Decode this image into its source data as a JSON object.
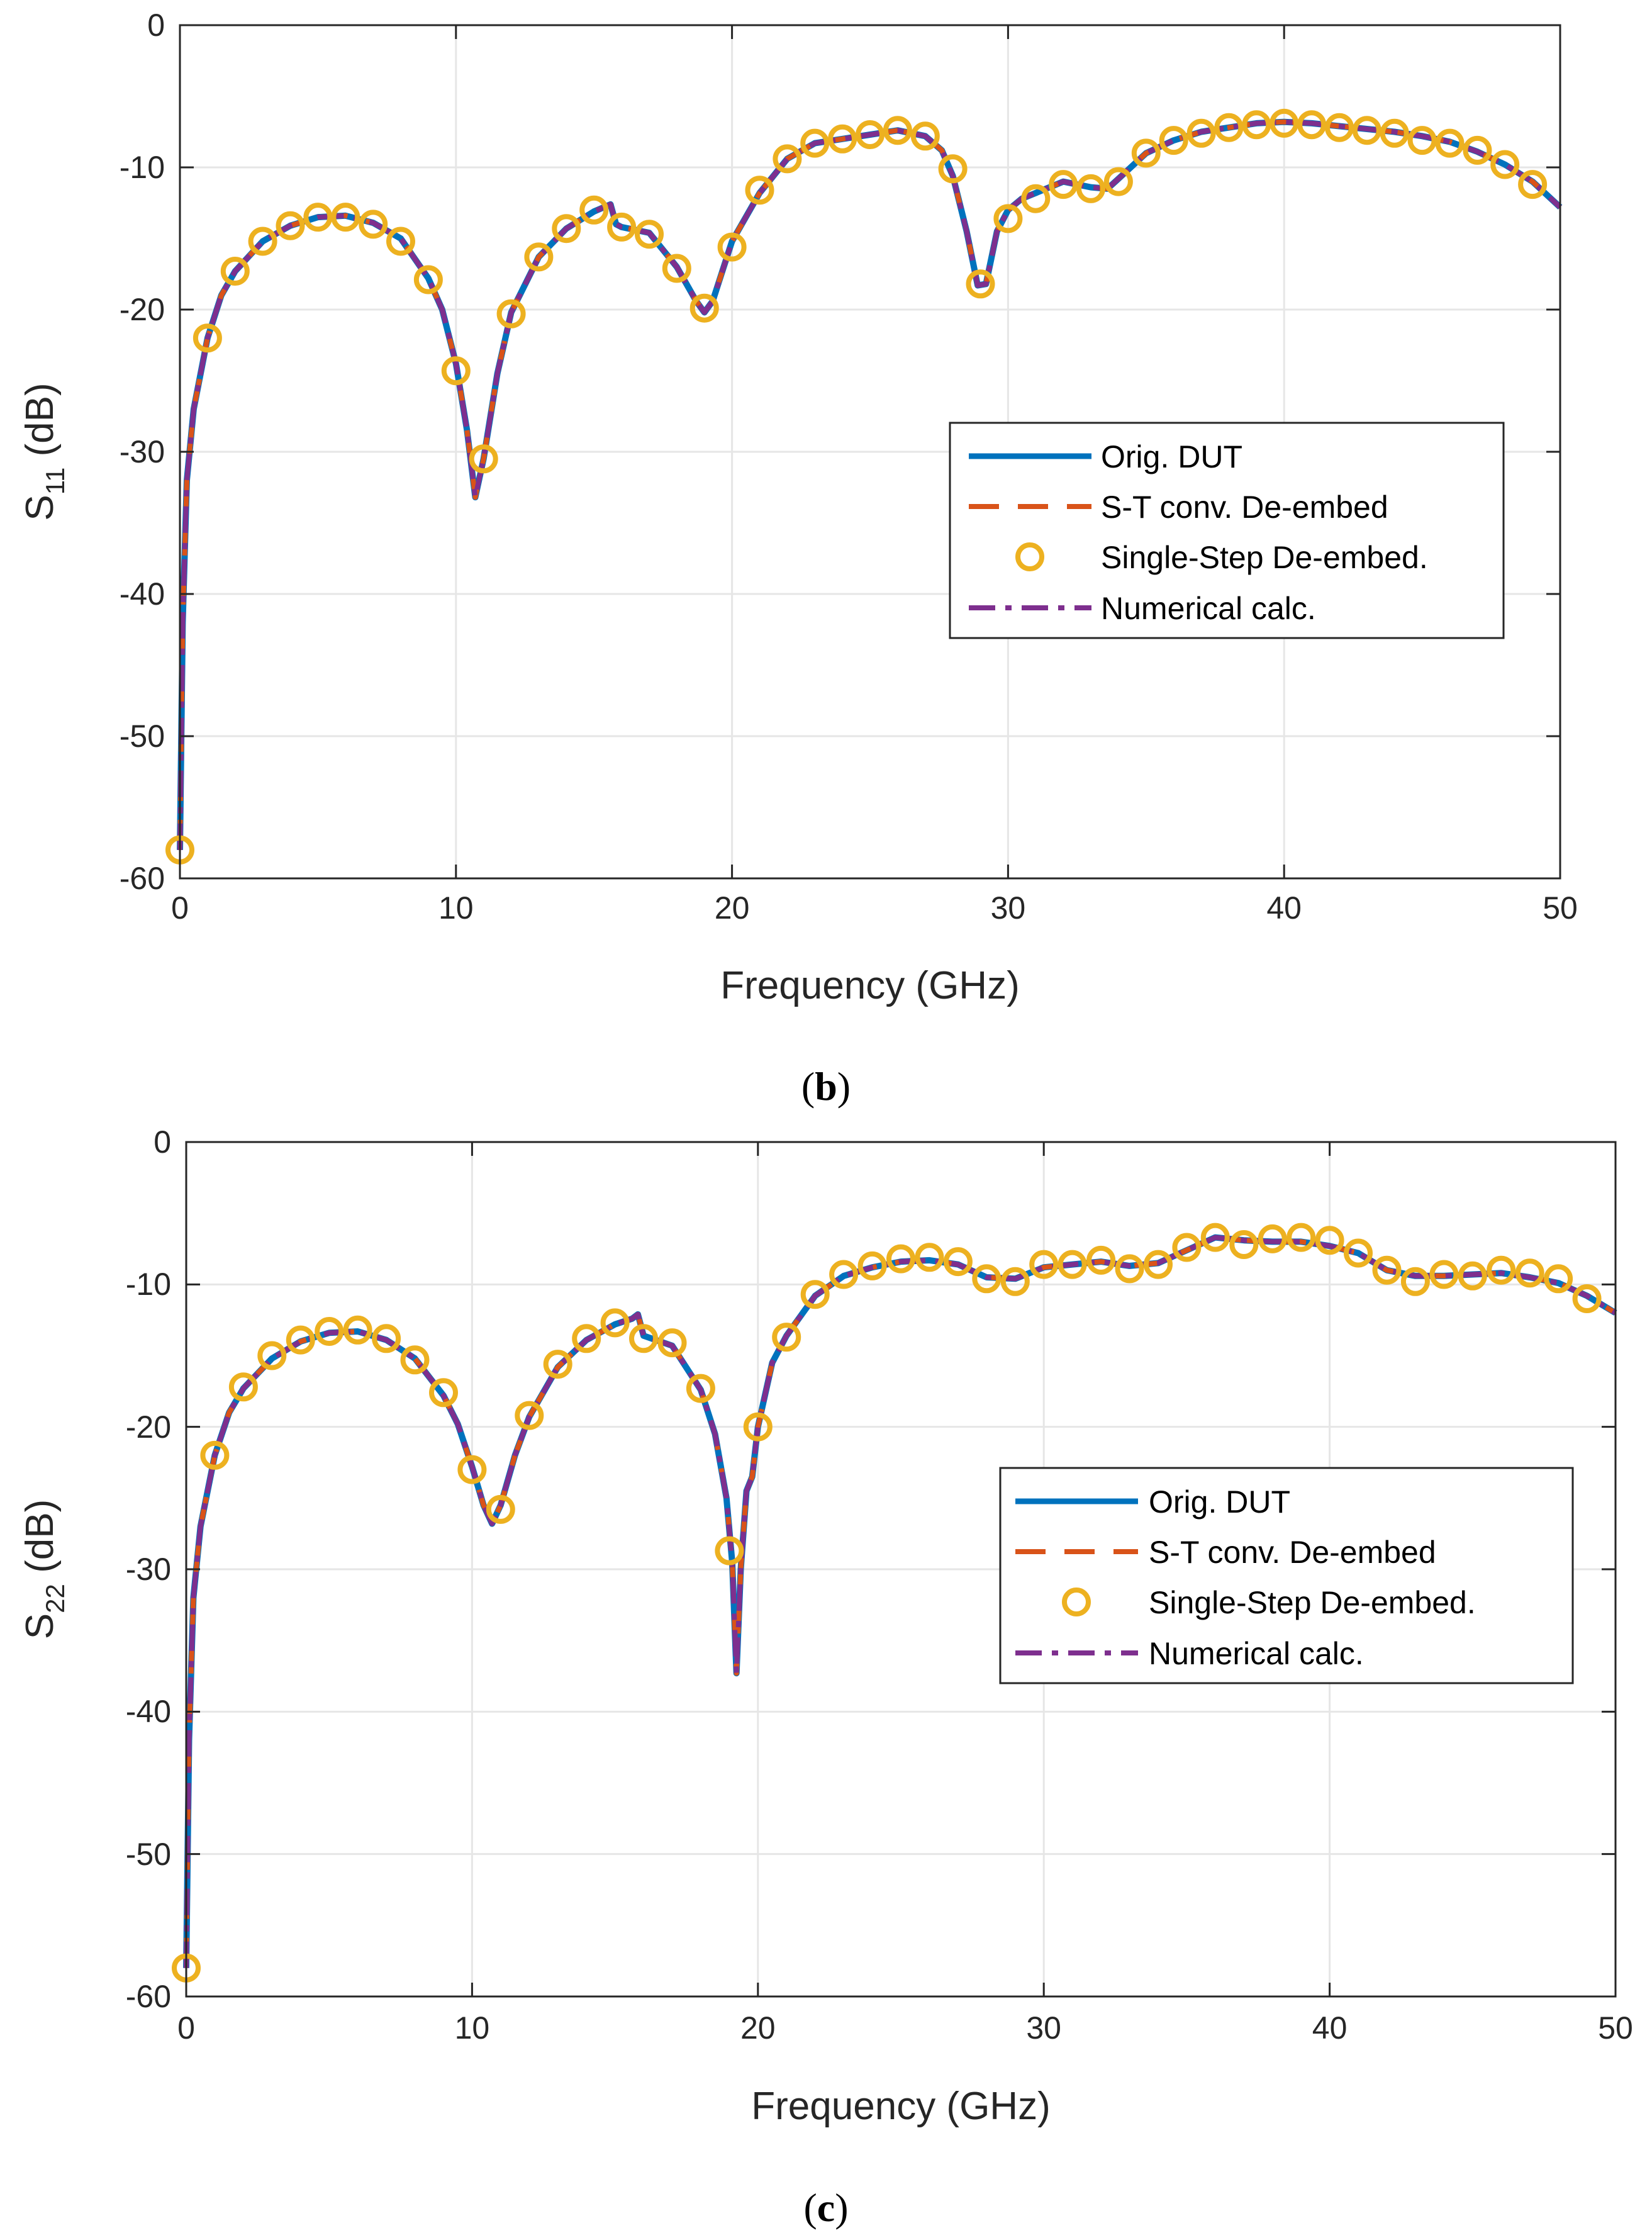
{
  "colors": {
    "orig": "#0072BD",
    "st": "#D95319",
    "single": "#EDB120",
    "numerical": "#7E2F8E",
    "grid": "#e6e6e6",
    "axis": "#262626"
  },
  "chart_data": [
    {
      "id": "s11",
      "type": "line",
      "caption": {
        "open": "(",
        "letter": "b",
        "close": ")"
      },
      "xlabel": "Frequency (GHz)",
      "ylabel": {
        "main": "S",
        "sub": "11",
        "unit": " (dB)"
      },
      "xlim": [
        0,
        50
      ],
      "ylim": [
        -60,
        0
      ],
      "xticks": [
        "0",
        "10",
        "20",
        "30",
        "40",
        "50"
      ],
      "yticks": [
        "0",
        "-10",
        "-20",
        "-30",
        "-40",
        "-50",
        "-60"
      ],
      "grid": true,
      "legend_position": "center-right",
      "legend": [
        "Orig. DUT",
        "S-T conv. De-embed",
        "Single-Step De-embed.",
        "Numerical calc."
      ],
      "curve": {
        "x": [
          0,
          0.1,
          0.25,
          0.5,
          1,
          1.5,
          2,
          3,
          4,
          5,
          6,
          7,
          8,
          9,
          9.5,
          10,
          10.4,
          10.7,
          11,
          11.5,
          12,
          13,
          14,
          15,
          15.6,
          15.8,
          16,
          17,
          18,
          18.7,
          19,
          19.3,
          20,
          21,
          22,
          23,
          24,
          25,
          26,
          27,
          27.6,
          28,
          28.5,
          28.9,
          29.2,
          29.6,
          30,
          30.5,
          31,
          32,
          33,
          33.6,
          34,
          35,
          36,
          37,
          38,
          39,
          40,
          41,
          42,
          43,
          44,
          45,
          46,
          47,
          48,
          49,
          50
        ],
        "y": [
          -58,
          -42,
          -32,
          -27,
          -22,
          -19,
          -17.3,
          -15.2,
          -14.1,
          -13.5,
          -13.4,
          -13.9,
          -15,
          -17.8,
          -20,
          -23.8,
          -28.5,
          -33.2,
          -30.5,
          -24.5,
          -20.2,
          -16.3,
          -14.3,
          -13.1,
          -12.6,
          -14,
          -14.2,
          -14.6,
          -17,
          -19.4,
          -20.2,
          -19.4,
          -15.2,
          -11.8,
          -9.4,
          -8.3,
          -8,
          -7.7,
          -7.4,
          -7.8,
          -8.8,
          -10.6,
          -14.5,
          -18.3,
          -18.2,
          -14.5,
          -13,
          -12.2,
          -11.8,
          -11,
          -11.4,
          -11.5,
          -10.8,
          -9,
          -8.1,
          -7.5,
          -7.2,
          -6.9,
          -6.8,
          -6.9,
          -7.1,
          -7.3,
          -7.5,
          -7.8,
          -8.2,
          -8.9,
          -9.8,
          -11,
          -12.8
        ]
      },
      "markers": {
        "x": [
          0,
          1,
          2,
          3,
          4,
          5,
          6,
          7,
          8,
          9,
          10,
          11,
          12,
          13,
          14,
          15,
          16,
          17,
          18,
          19,
          20,
          21,
          22,
          23,
          24,
          25,
          26,
          27,
          28,
          29,
          30,
          31,
          32,
          33,
          34,
          35,
          36,
          37,
          38,
          39,
          40,
          41,
          42,
          43,
          44,
          45,
          46,
          47,
          48,
          49
        ],
        "y": [
          -58,
          -22,
          -17.3,
          -15.2,
          -14.1,
          -13.5,
          -13.5,
          -14,
          -15.2,
          -17.9,
          -24.3,
          -30.5,
          -20.3,
          -16.3,
          -14.3,
          -13,
          -14.2,
          -14.7,
          -17.1,
          -19.9,
          -15.6,
          -11.6,
          -9.4,
          -8.3,
          -8,
          -7.7,
          -7.4,
          -7.8,
          -10.1,
          -18.2,
          -13.6,
          -12.2,
          -11.2,
          -11.5,
          -11,
          -9,
          -8.1,
          -7.6,
          -7.2,
          -7,
          -6.9,
          -7,
          -7.2,
          -7.4,
          -7.6,
          -8.1,
          -8.3,
          -8.8,
          -9.8,
          -11.2
        ]
      }
    },
    {
      "id": "s22",
      "type": "line",
      "caption": {
        "open": "(",
        "letter": "c",
        "close": ")"
      },
      "xlabel": "Frequency (GHz)",
      "ylabel": {
        "main": "S",
        "sub": "22",
        "unit": " (dB)"
      },
      "xlim": [
        0,
        50
      ],
      "ylim": [
        -60,
        0
      ],
      "xticks": [
        "0",
        "10",
        "20",
        "30",
        "40",
        "50"
      ],
      "yticks": [
        "0",
        "-10",
        "-20",
        "-30",
        "-40",
        "-50",
        "-60"
      ],
      "grid": true,
      "legend_position": "center-right",
      "legend": [
        "Orig. DUT",
        "S-T conv. De-embed",
        "Single-Step De-embed.",
        "Numerical calc."
      ],
      "curve": {
        "x": [
          0,
          0.1,
          0.25,
          0.5,
          1,
          1.5,
          2,
          3,
          4,
          5,
          6,
          7,
          8,
          9,
          9.5,
          10,
          10.4,
          10.7,
          11,
          11.5,
          12,
          13,
          14,
          15,
          15.6,
          15.8,
          16,
          17,
          18,
          18.5,
          18.9,
          19.1,
          19.25,
          19.4,
          19.6,
          19.8,
          20,
          20.5,
          21,
          22,
          23,
          24,
          25,
          26,
          27,
          28,
          29,
          30,
          31,
          32,
          33,
          34,
          35,
          36,
          37,
          38,
          39,
          40,
          41,
          42,
          43,
          44,
          45,
          46,
          47,
          48,
          49,
          50
        ],
        "y": [
          -58,
          -42,
          -32,
          -27,
          -22,
          -19,
          -17.3,
          -15.2,
          -14,
          -13.4,
          -13.3,
          -13.9,
          -15.2,
          -17.8,
          -19.8,
          -22.8,
          -25.5,
          -26.8,
          -25.5,
          -22,
          -19.3,
          -15.8,
          -13.9,
          -12.8,
          -12.4,
          -12.1,
          -13.6,
          -14.3,
          -17.4,
          -20.5,
          -25,
          -29.5,
          -37.3,
          -30,
          -24.5,
          -23.5,
          -20,
          -15.5,
          -13.6,
          -10.8,
          -9.4,
          -8.8,
          -8.4,
          -8.3,
          -8.6,
          -9.5,
          -9.6,
          -8.8,
          -8.6,
          -8.4,
          -8.7,
          -8.5,
          -7.6,
          -6.7,
          -6.9,
          -7,
          -7,
          -7.3,
          -7.8,
          -9,
          -9.4,
          -9.4,
          -9.3,
          -9.2,
          -9.5,
          -9.9,
          -10.8,
          -12
        ]
      },
      "markers": {
        "x": [
          0,
          1,
          2,
          3,
          4,
          5,
          6,
          7,
          8,
          9,
          10,
          11,
          12,
          13,
          14,
          15,
          16,
          17,
          18,
          19,
          20,
          21,
          22,
          23,
          24,
          25,
          26,
          27,
          28,
          29,
          30,
          31,
          32,
          33,
          34,
          35,
          36,
          37,
          38,
          39,
          40,
          41,
          42,
          43,
          44,
          45,
          46,
          47,
          48,
          49
        ],
        "y": [
          -58,
          -22,
          -17.2,
          -15,
          -13.9,
          -13.3,
          -13.2,
          -13.8,
          -15.3,
          -17.6,
          -23,
          -25.8,
          -19.2,
          -15.6,
          -13.8,
          -12.7,
          -13.8,
          -14.1,
          -17.3,
          -28.7,
          -20,
          -13.7,
          -10.7,
          -9.3,
          -8.7,
          -8.2,
          -8.1,
          -8.4,
          -9.6,
          -9.8,
          -8.6,
          -8.6,
          -8.3,
          -8.9,
          -8.6,
          -7.4,
          -6.7,
          -7.2,
          -6.8,
          -6.7,
          -6.9,
          -7.8,
          -9,
          -9.8,
          -9.3,
          -9.4,
          -9,
          -9.2,
          -9.6,
          -11
        ]
      }
    }
  ]
}
